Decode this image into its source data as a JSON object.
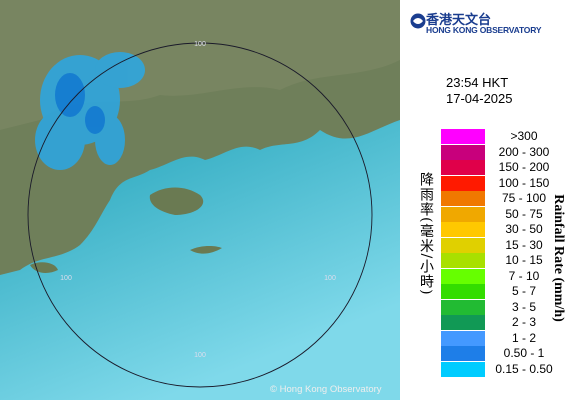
{
  "logo": {
    "chinese": "香港天文台",
    "english": "HONG KONG OBSERVATORY"
  },
  "timestamp": {
    "time": "23:54 HKT",
    "date": "17-04-2025"
  },
  "legend": {
    "title_zh": "降雨率(毫米/小時)",
    "title_en": "Rainfall Rate (mm/h)",
    "items": [
      {
        "label": ">300",
        "color": "#ff00ff"
      },
      {
        "label": "200 - 300",
        "color": "#c8007c"
      },
      {
        "label": "150 - 200",
        "color": "#e0004a"
      },
      {
        "label": "100 - 150",
        "color": "#ff1a00"
      },
      {
        "label": "75 - 100",
        "color": "#f07800"
      },
      {
        "label": "50 - 75",
        "color": "#f0a800"
      },
      {
        "label": "30 - 50",
        "color": "#ffc800"
      },
      {
        "label": "15 - 30",
        "color": "#e0d000"
      },
      {
        "label": "10 - 15",
        "color": "#a8e000"
      },
      {
        "label": "7 - 10",
        "color": "#66ff00"
      },
      {
        "label": "5 - 7",
        "color": "#33dd00"
      },
      {
        "label": "3 - 5",
        "color": "#22bb33"
      },
      {
        "label": "2 - 3",
        "color": "#119955"
      },
      {
        "label": "1 - 2",
        "color": "#4499ff"
      },
      {
        "label": "0.50 - 1",
        "color": "#1e7ee8"
      },
      {
        "label": "0.15 - 0.50",
        "color": "#00ccff"
      }
    ]
  },
  "map": {
    "ring_labels": [
      "100",
      "100",
      "100",
      "100"
    ]
  },
  "copyright": "© Hong Kong Observatory"
}
